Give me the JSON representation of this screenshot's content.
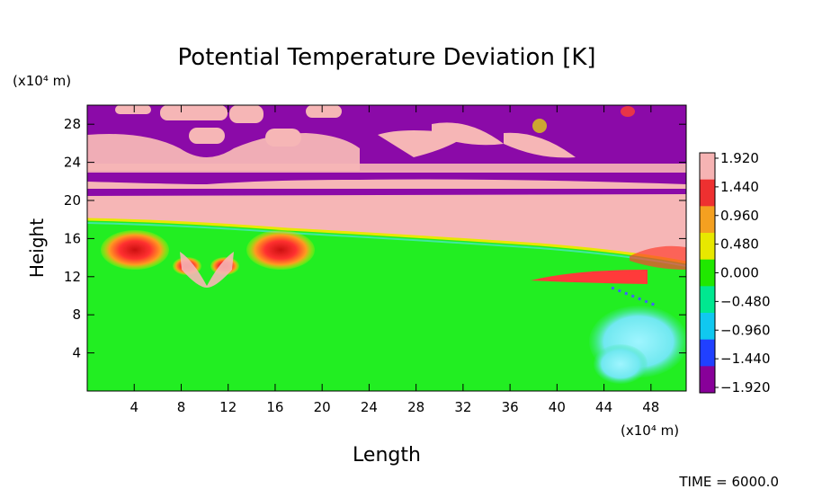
{
  "chart_data": {
    "type": "heatmap",
    "title": "Potential Temperature Deviation [K]",
    "xlabel": "Length",
    "ylabel": "Height",
    "x_unit": "(x10⁴ m)",
    "y_unit": "(x10⁴ m)",
    "xlim": [
      0,
      51
    ],
    "ylim": [
      0,
      30
    ],
    "x_ticks": [
      4,
      8,
      12,
      16,
      20,
      24,
      28,
      32,
      36,
      40,
      44,
      48
    ],
    "y_ticks": [
      4,
      8,
      12,
      16,
      20,
      24,
      28
    ],
    "colorbar": {
      "labels": [
        "1.920",
        "1.440",
        "0.960",
        "0.480",
        "0.000",
        "−0.480",
        "−0.960",
        "−1.440",
        "−1.920"
      ],
      "values": [
        1.92,
        1.44,
        0.96,
        0.48,
        0.0,
        -0.48,
        -0.96,
        -1.44,
        -1.92
      ],
      "colors": [
        "#f6b3b3",
        "#ee3030",
        "#f4a020",
        "#e8e800",
        "#20e800",
        "#00e890",
        "#10c8f0",
        "#2040ff",
        "#880099"
      ]
    },
    "fields": {
      "stratosphere": "#8b0aa8",
      "tropopause_band": "#f6b6b6",
      "troposphere": "#22ee22",
      "warm": "#ff2a2a",
      "cool": "#6ef0ff"
    },
    "time_label": "TIME = 6000.0"
  }
}
